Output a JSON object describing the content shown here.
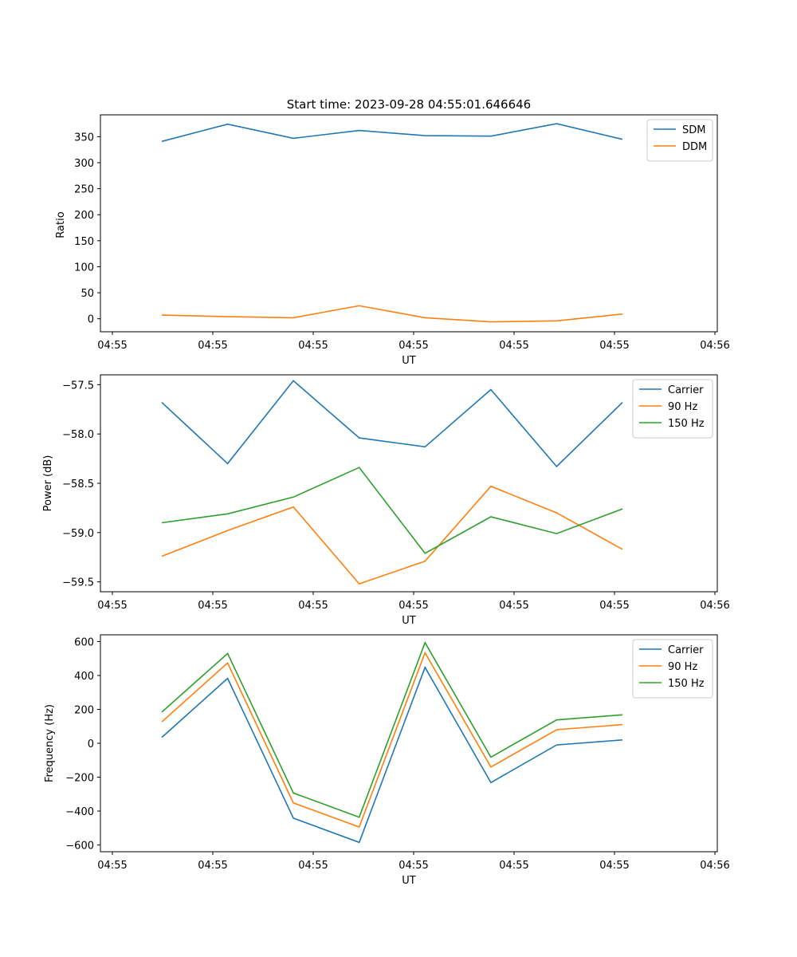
{
  "figure": {
    "title": "Start time: 2023-09-28 04:55:01.646646"
  },
  "chart_data": [
    {
      "type": "line",
      "title": "Start time: 2023-09-28 04:55:01.646646",
      "xlabel": "UT",
      "ylabel": "Ratio",
      "x_tick_labels": [
        "04:55",
        "04:55",
        "04:55",
        "04:55",
        "04:55",
        "04:55",
        "04:55",
        "04:56"
      ],
      "x": [
        1,
        2,
        3,
        4,
        5,
        6,
        7,
        8
      ],
      "xlim": [
        -0.18,
        9.14
      ],
      "ylim": [
        -25,
        392
      ],
      "yticks": [
        0,
        50,
        100,
        150,
        200,
        250,
        300,
        350
      ],
      "legend": "top-right",
      "series": [
        {
          "name": "SDM",
          "color": "#1f77b4",
          "values": [
            341,
            374,
            347,
            362,
            352,
            351,
            375,
            345
          ]
        },
        {
          "name": "DDM",
          "color": "#ff7f0e",
          "values": [
            7,
            4,
            2,
            25,
            2,
            -6,
            -4,
            9
          ]
        }
      ]
    },
    {
      "type": "line",
      "title": "",
      "xlabel": "UT",
      "ylabel": "Power (dB)",
      "x_tick_labels": [
        "04:55",
        "04:55",
        "04:55",
        "04:55",
        "04:55",
        "04:55",
        "04:55",
        "04:56"
      ],
      "x": [
        1,
        2,
        3,
        4,
        5,
        6,
        7,
        8
      ],
      "xlim": [
        -0.18,
        9.14
      ],
      "ylim": [
        -59.6,
        -57.4
      ],
      "yticks": [
        -59.5,
        -59.0,
        -58.5,
        -58.0,
        -57.5
      ],
      "ytick_labels": [
        "−59.5",
        "−59.0",
        "−58.5",
        "−58.0",
        "−57.5"
      ],
      "legend": "top-right",
      "series": [
        {
          "name": "Carrier",
          "color": "#1f77b4",
          "values": [
            -57.68,
            -58.3,
            -57.46,
            -58.04,
            -58.13,
            -57.55,
            -58.33,
            -57.68
          ]
        },
        {
          "name": "90 Hz",
          "color": "#ff7f0e",
          "values": [
            -59.24,
            -58.98,
            -58.74,
            -59.52,
            -59.29,
            -58.53,
            -58.8,
            -59.17
          ]
        },
        {
          "name": "150 Hz",
          "color": "#2ca02c",
          "values": [
            -58.9,
            -58.81,
            -58.64,
            -58.34,
            -59.21,
            -58.84,
            -59.01,
            -58.76
          ]
        }
      ]
    },
    {
      "type": "line",
      "title": "",
      "xlabel": "UT",
      "ylabel": "Frequency (Hz)",
      "x_tick_labels": [
        "04:55",
        "04:55",
        "04:55",
        "04:55",
        "04:55",
        "04:55",
        "04:55",
        "04:56"
      ],
      "x": [
        1,
        2,
        3,
        4,
        5,
        6,
        7,
        8
      ],
      "xlim": [
        -0.18,
        9.14
      ],
      "ylim": [
        -640,
        640
      ],
      "yticks": [
        -600,
        -400,
        -200,
        0,
        200,
        400,
        600
      ],
      "ytick_labels": [
        "−600",
        "−400",
        "−200",
        "0",
        "200",
        "400",
        "600"
      ],
      "legend": "top-right",
      "series": [
        {
          "name": "Carrier",
          "color": "#1f77b4",
          "values": [
            35,
            383,
            -442,
            -585,
            448,
            -232,
            -10,
            20
          ]
        },
        {
          "name": "90 Hz",
          "color": "#ff7f0e",
          "values": [
            126,
            474,
            -352,
            -494,
            534,
            -140,
            80,
            110
          ]
        },
        {
          "name": "150 Hz",
          "color": "#2ca02c",
          "values": [
            184,
            530,
            -293,
            -436,
            594,
            -82,
            138,
            168
          ]
        }
      ]
    }
  ]
}
